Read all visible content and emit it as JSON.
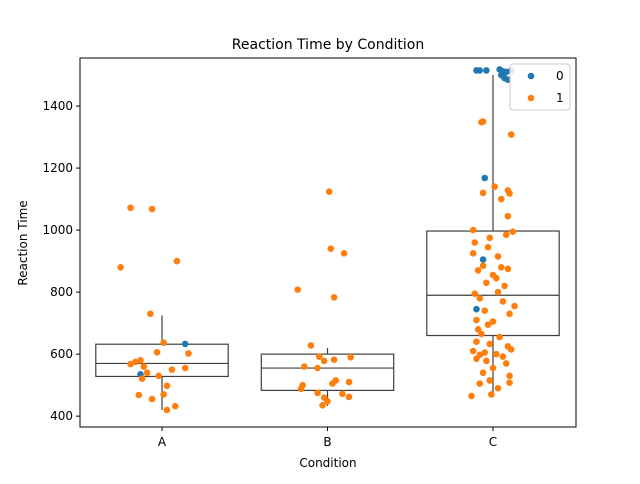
{
  "chart_data": {
    "type": "box+strip",
    "title": "Reaction Time by Condition",
    "xlabel": "Condition",
    "ylabel": "Reaction Time",
    "categories": [
      "A",
      "B",
      "C"
    ],
    "ylim": [
      365,
      1555
    ],
    "yticks": [
      400,
      600,
      800,
      1000,
      1200,
      1400
    ],
    "grid": false,
    "legend": {
      "placement": "top-right",
      "entries": [
        "0",
        "1"
      ]
    },
    "colors": {
      "0": "#1f77b4",
      "1": "#ff7f0e",
      "box": "#3f3f3f"
    },
    "boxes": [
      {
        "category": "A",
        "whisker_low": 420,
        "q1": 528,
        "median": 570,
        "q3": 632,
        "whisker_high": 725
      },
      {
        "category": "B",
        "whisker_low": 433,
        "q1": 483,
        "median": 555,
        "q3": 600,
        "whisker_high": 620
      },
      {
        "category": "C",
        "whisker_low": 465,
        "q1": 660,
        "median": 790,
        "q3": 997,
        "whisker_high": 1500
      }
    ],
    "points": [
      {
        "category": "A",
        "hue": "0",
        "x_offset": 0.14,
        "y": 633
      },
      {
        "category": "A",
        "hue": "0",
        "x_offset": -0.13,
        "y": 535
      },
      {
        "category": "A",
        "hue": "1",
        "x_offset": -0.19,
        "y": 1072
      },
      {
        "category": "A",
        "hue": "1",
        "x_offset": -0.06,
        "y": 1068
      },
      {
        "category": "A",
        "hue": "1",
        "x_offset": 0.09,
        "y": 900
      },
      {
        "category": "A",
        "hue": "1",
        "x_offset": -0.25,
        "y": 880
      },
      {
        "category": "A",
        "hue": "1",
        "x_offset": -0.07,
        "y": 730
      },
      {
        "category": "A",
        "hue": "1",
        "x_offset": 0.01,
        "y": 637
      },
      {
        "category": "A",
        "hue": "1",
        "x_offset": -0.03,
        "y": 606
      },
      {
        "category": "A",
        "hue": "1",
        "x_offset": 0.16,
        "y": 602
      },
      {
        "category": "A",
        "hue": "1",
        "x_offset": -0.13,
        "y": 580
      },
      {
        "category": "A",
        "hue": "1",
        "x_offset": -0.16,
        "y": 575
      },
      {
        "category": "A",
        "hue": "1",
        "x_offset": -0.19,
        "y": 568
      },
      {
        "category": "A",
        "hue": "1",
        "x_offset": -0.11,
        "y": 560
      },
      {
        "category": "A",
        "hue": "1",
        "x_offset": 0.14,
        "y": 555
      },
      {
        "category": "A",
        "hue": "1",
        "x_offset": 0.06,
        "y": 550
      },
      {
        "category": "A",
        "hue": "1",
        "x_offset": -0.09,
        "y": 540
      },
      {
        "category": "A",
        "hue": "1",
        "x_offset": -0.02,
        "y": 530
      },
      {
        "category": "A",
        "hue": "1",
        "x_offset": -0.12,
        "y": 521
      },
      {
        "category": "A",
        "hue": "1",
        "x_offset": 0.03,
        "y": 498
      },
      {
        "category": "A",
        "hue": "1",
        "x_offset": 0.01,
        "y": 470
      },
      {
        "category": "A",
        "hue": "1",
        "x_offset": -0.14,
        "y": 468
      },
      {
        "category": "A",
        "hue": "1",
        "x_offset": -0.06,
        "y": 455
      },
      {
        "category": "A",
        "hue": "1",
        "x_offset": 0.08,
        "y": 432
      },
      {
        "category": "A",
        "hue": "1",
        "x_offset": 0.03,
        "y": 420
      },
      {
        "category": "B",
        "hue": "1",
        "x_offset": 0.01,
        "y": 1124
      },
      {
        "category": "B",
        "hue": "1",
        "x_offset": 0.02,
        "y": 940
      },
      {
        "category": "B",
        "hue": "1",
        "x_offset": 0.1,
        "y": 925
      },
      {
        "category": "B",
        "hue": "1",
        "x_offset": -0.18,
        "y": 808
      },
      {
        "category": "B",
        "hue": "1",
        "x_offset": 0.04,
        "y": 783
      },
      {
        "category": "B",
        "hue": "1",
        "x_offset": -0.1,
        "y": 628
      },
      {
        "category": "B",
        "hue": "1",
        "x_offset": -0.05,
        "y": 592
      },
      {
        "category": "B",
        "hue": "1",
        "x_offset": 0.14,
        "y": 590
      },
      {
        "category": "B",
        "hue": "1",
        "x_offset": 0.04,
        "y": 582
      },
      {
        "category": "B",
        "hue": "1",
        "x_offset": -0.02,
        "y": 578
      },
      {
        "category": "B",
        "hue": "1",
        "x_offset": -0.14,
        "y": 560
      },
      {
        "category": "B",
        "hue": "1",
        "x_offset": -0.06,
        "y": 555
      },
      {
        "category": "B",
        "hue": "1",
        "x_offset": 0.05,
        "y": 515
      },
      {
        "category": "B",
        "hue": "1",
        "x_offset": 0.13,
        "y": 510
      },
      {
        "category": "B",
        "hue": "1",
        "x_offset": 0.03,
        "y": 505
      },
      {
        "category": "B",
        "hue": "1",
        "x_offset": -0.15,
        "y": 500
      },
      {
        "category": "B",
        "hue": "1",
        "x_offset": -0.16,
        "y": 488
      },
      {
        "category": "B",
        "hue": "1",
        "x_offset": -0.06,
        "y": 475
      },
      {
        "category": "B",
        "hue": "1",
        "x_offset": 0.09,
        "y": 472
      },
      {
        "category": "B",
        "hue": "1",
        "x_offset": 0.13,
        "y": 462
      },
      {
        "category": "B",
        "hue": "1",
        "x_offset": -0.02,
        "y": 460
      },
      {
        "category": "B",
        "hue": "1",
        "x_offset": 0.0,
        "y": 448
      },
      {
        "category": "B",
        "hue": "1",
        "x_offset": -0.03,
        "y": 435
      },
      {
        "category": "C",
        "hue": "0",
        "x_offset": -0.1,
        "y": 1515
      },
      {
        "category": "C",
        "hue": "0",
        "x_offset": -0.08,
        "y": 1515
      },
      {
        "category": "C",
        "hue": "0",
        "x_offset": -0.04,
        "y": 1515
      },
      {
        "category": "C",
        "hue": "0",
        "x_offset": 0.04,
        "y": 1518
      },
      {
        "category": "C",
        "hue": "0",
        "x_offset": 0.06,
        "y": 1512
      },
      {
        "category": "C",
        "hue": "0",
        "x_offset": 0.08,
        "y": 1510
      },
      {
        "category": "C",
        "hue": "0",
        "x_offset": 0.11,
        "y": 1515
      },
      {
        "category": "C",
        "hue": "0",
        "x_offset": 0.05,
        "y": 1500
      },
      {
        "category": "C",
        "hue": "0",
        "x_offset": 0.07,
        "y": 1490
      },
      {
        "category": "C",
        "hue": "0",
        "x_offset": 0.09,
        "y": 1485
      },
      {
        "category": "C",
        "hue": "0",
        "x_offset": -0.05,
        "y": 1168
      },
      {
        "category": "C",
        "hue": "0",
        "x_offset": -0.06,
        "y": 905
      },
      {
        "category": "C",
        "hue": "0",
        "x_offset": -0.1,
        "y": 745
      },
      {
        "category": "C",
        "hue": "1",
        "x_offset": -0.06,
        "y": 1350
      },
      {
        "category": "C",
        "hue": "1",
        "x_offset": -0.07,
        "y": 1348
      },
      {
        "category": "C",
        "hue": "1",
        "x_offset": 0.11,
        "y": 1308
      },
      {
        "category": "C",
        "hue": "1",
        "x_offset": 0.01,
        "y": 1140
      },
      {
        "category": "C",
        "hue": "1",
        "x_offset": 0.09,
        "y": 1128
      },
      {
        "category": "C",
        "hue": "1",
        "x_offset": -0.06,
        "y": 1120
      },
      {
        "category": "C",
        "hue": "1",
        "x_offset": 0.05,
        "y": 1100
      },
      {
        "category": "C",
        "hue": "1",
        "x_offset": 0.1,
        "y": 1118
      },
      {
        "category": "C",
        "hue": "1",
        "x_offset": 0.09,
        "y": 1045
      },
      {
        "category": "C",
        "hue": "1",
        "x_offset": -0.12,
        "y": 1000
      },
      {
        "category": "C",
        "hue": "1",
        "x_offset": 0.12,
        "y": 995
      },
      {
        "category": "C",
        "hue": "1",
        "x_offset": 0.08,
        "y": 985
      },
      {
        "category": "C",
        "hue": "1",
        "x_offset": -0.02,
        "y": 975
      },
      {
        "category": "C",
        "hue": "1",
        "x_offset": -0.11,
        "y": 960
      },
      {
        "category": "C",
        "hue": "1",
        "x_offset": -0.03,
        "y": 945
      },
      {
        "category": "C",
        "hue": "1",
        "x_offset": -0.12,
        "y": 925
      },
      {
        "category": "C",
        "hue": "1",
        "x_offset": 0.03,
        "y": 915
      },
      {
        "category": "C",
        "hue": "1",
        "x_offset": -0.06,
        "y": 885
      },
      {
        "category": "C",
        "hue": "1",
        "x_offset": 0.05,
        "y": 880
      },
      {
        "category": "C",
        "hue": "1",
        "x_offset": 0.09,
        "y": 875
      },
      {
        "category": "C",
        "hue": "1",
        "x_offset": -0.09,
        "y": 870
      },
      {
        "category": "C",
        "hue": "1",
        "x_offset": 0.0,
        "y": 855
      },
      {
        "category": "C",
        "hue": "1",
        "x_offset": 0.02,
        "y": 845
      },
      {
        "category": "C",
        "hue": "1",
        "x_offset": -0.04,
        "y": 830
      },
      {
        "category": "C",
        "hue": "1",
        "x_offset": 0.07,
        "y": 820
      },
      {
        "category": "C",
        "hue": "1",
        "x_offset": -0.11,
        "y": 795
      },
      {
        "category": "C",
        "hue": "1",
        "x_offset": 0.03,
        "y": 800
      },
      {
        "category": "C",
        "hue": "1",
        "x_offset": -0.08,
        "y": 780
      },
      {
        "category": "C",
        "hue": "1",
        "x_offset": 0.06,
        "y": 770
      },
      {
        "category": "C",
        "hue": "1",
        "x_offset": 0.13,
        "y": 755
      },
      {
        "category": "C",
        "hue": "1",
        "x_offset": -0.05,
        "y": 740
      },
      {
        "category": "C",
        "hue": "1",
        "x_offset": 0.1,
        "y": 730
      },
      {
        "category": "C",
        "hue": "1",
        "x_offset": -0.1,
        "y": 710
      },
      {
        "category": "C",
        "hue": "1",
        "x_offset": 0.0,
        "y": 705
      },
      {
        "category": "C",
        "hue": "1",
        "x_offset": -0.03,
        "y": 695
      },
      {
        "category": "C",
        "hue": "1",
        "x_offset": -0.09,
        "y": 680
      },
      {
        "category": "C",
        "hue": "1",
        "x_offset": -0.07,
        "y": 665
      },
      {
        "category": "C",
        "hue": "1",
        "x_offset": 0.04,
        "y": 655
      },
      {
        "category": "C",
        "hue": "1",
        "x_offset": -0.1,
        "y": 640
      },
      {
        "category": "C",
        "hue": "1",
        "x_offset": -0.02,
        "y": 633
      },
      {
        "category": "C",
        "hue": "1",
        "x_offset": 0.09,
        "y": 625
      },
      {
        "category": "C",
        "hue": "1",
        "x_offset": 0.11,
        "y": 615
      },
      {
        "category": "C",
        "hue": "1",
        "x_offset": -0.12,
        "y": 610
      },
      {
        "category": "C",
        "hue": "1",
        "x_offset": -0.05,
        "y": 605
      },
      {
        "category": "C",
        "hue": "1",
        "x_offset": -0.08,
        "y": 598
      },
      {
        "category": "C",
        "hue": "1",
        "x_offset": 0.02,
        "y": 600
      },
      {
        "category": "C",
        "hue": "1",
        "x_offset": 0.06,
        "y": 592
      },
      {
        "category": "C",
        "hue": "1",
        "x_offset": -0.1,
        "y": 585
      },
      {
        "category": "C",
        "hue": "1",
        "x_offset": -0.04,
        "y": 578
      },
      {
        "category": "C",
        "hue": "1",
        "x_offset": 0.08,
        "y": 570
      },
      {
        "category": "C",
        "hue": "1",
        "x_offset": 0.0,
        "y": 555
      },
      {
        "category": "C",
        "hue": "1",
        "x_offset": -0.06,
        "y": 540
      },
      {
        "category": "C",
        "hue": "1",
        "x_offset": 0.1,
        "y": 530
      },
      {
        "category": "C",
        "hue": "1",
        "x_offset": -0.02,
        "y": 515
      },
      {
        "category": "C",
        "hue": "1",
        "x_offset": -0.08,
        "y": 505
      },
      {
        "category": "C",
        "hue": "1",
        "x_offset": 0.1,
        "y": 508
      },
      {
        "category": "C",
        "hue": "1",
        "x_offset": 0.03,
        "y": 490
      },
      {
        "category": "C",
        "hue": "1",
        "x_offset": -0.13,
        "y": 465
      },
      {
        "category": "C",
        "hue": "1",
        "x_offset": -0.01,
        "y": 470
      }
    ]
  }
}
